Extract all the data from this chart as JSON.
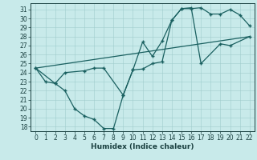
{
  "xlabel": "Humidex (Indice chaleur)",
  "xlim": [
    -0.5,
    22.5
  ],
  "ylim": [
    17.5,
    31.7
  ],
  "xticks": [
    0,
    1,
    2,
    3,
    4,
    5,
    6,
    7,
    8,
    9,
    10,
    11,
    12,
    13,
    14,
    15,
    16,
    17,
    18,
    19,
    20,
    21,
    22
  ],
  "yticks": [
    18,
    19,
    20,
    21,
    22,
    23,
    24,
    25,
    26,
    27,
    28,
    29,
    30,
    31
  ],
  "bg_color": "#c8eaea",
  "grid_color": "#a0cccc",
  "line_color": "#1a6060",
  "curve1_x": [
    0,
    1,
    2,
    3,
    4,
    5,
    6,
    7,
    8,
    9,
    10,
    11,
    12,
    13,
    14,
    15,
    16,
    17,
    18,
    19,
    20,
    21,
    22
  ],
  "curve1_y": [
    24.5,
    23.0,
    22.8,
    22.0,
    20.0,
    19.2,
    18.8,
    17.8,
    17.8,
    21.5,
    24.3,
    24.4,
    25.0,
    25.2,
    29.8,
    31.1,
    31.1,
    31.2,
    30.5,
    30.5,
    31.0,
    30.4,
    29.2
  ],
  "curve2_x": [
    0,
    2,
    3,
    5,
    6,
    7,
    9,
    10,
    11,
    12,
    13,
    14,
    15,
    16,
    17,
    19,
    20,
    22
  ],
  "curve2_y": [
    24.5,
    22.8,
    24.0,
    24.2,
    24.5,
    24.5,
    21.5,
    24.3,
    27.4,
    25.8,
    27.5,
    29.8,
    31.1,
    31.2,
    25.0,
    27.2,
    27.0,
    28.0
  ],
  "line_x": [
    0,
    22
  ],
  "line_y": [
    24.5,
    28.0
  ],
  "tick_labelsize": 5.5,
  "xlabel_fontsize": 6.5
}
